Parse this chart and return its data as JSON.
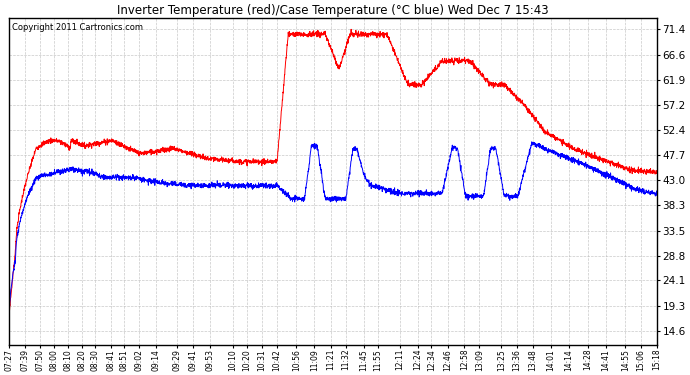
{
  "title": "Inverter Temperature (red)/Case Temperature (°C blue) Wed Dec 7 15:43",
  "copyright": "Copyright 2011 Cartronics.com",
  "yticks": [
    14.6,
    19.3,
    24.1,
    28.8,
    33.5,
    38.3,
    43.0,
    47.7,
    52.4,
    57.2,
    61.9,
    66.6,
    71.4
  ],
  "ylim": [
    12.0,
    73.5
  ],
  "background_color": "#ffffff",
  "plot_bg_color": "#ffffff",
  "grid_color": "#bbbbbb",
  "red_color": "#ff0000",
  "blue_color": "#0000ff",
  "x_labels": [
    "07:27",
    "07:39",
    "07:50",
    "08:00",
    "08:10",
    "08:20",
    "08:30",
    "08:41",
    "08:51",
    "09:02",
    "09:14",
    "09:29",
    "09:41",
    "09:53",
    "10:10",
    "10:20",
    "10:31",
    "10:42",
    "10:56",
    "11:09",
    "11:21",
    "11:32",
    "11:45",
    "11:55",
    "12:11",
    "12:24",
    "12:34",
    "12:46",
    "12:58",
    "13:09",
    "13:25",
    "13:36",
    "13:48",
    "14:01",
    "14:14",
    "14:28",
    "14:41",
    "14:55",
    "15:06",
    "15:18"
  ],
  "figsize": [
    6.9,
    3.75
  ],
  "dpi": 100
}
